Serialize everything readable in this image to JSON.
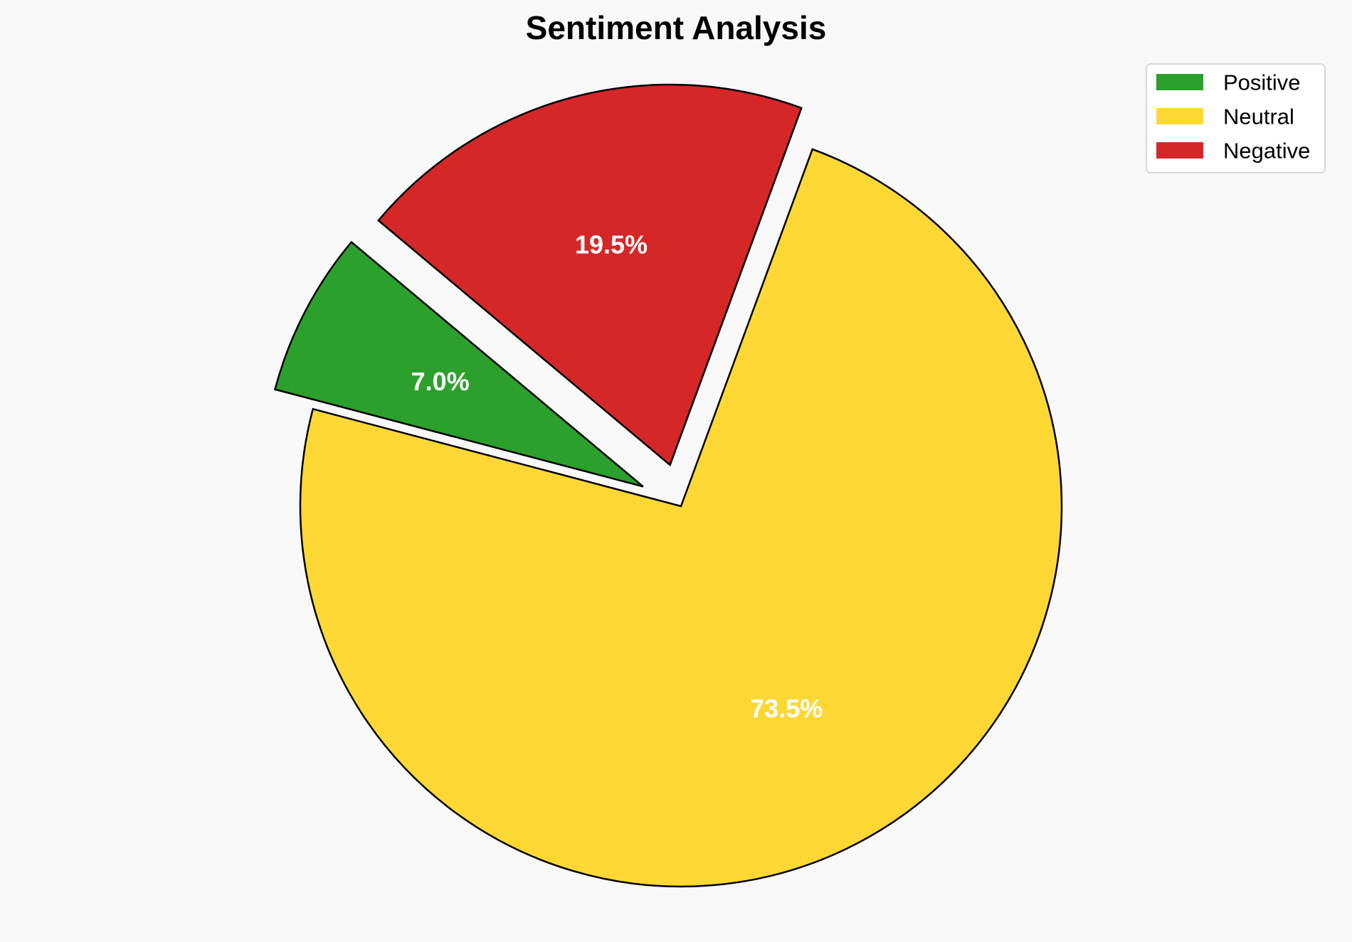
{
  "chart_data": {
    "type": "pie",
    "title": "Sentiment Analysis",
    "categories": [
      "Positive",
      "Neutral",
      "Negative"
    ],
    "values": [
      7.0,
      73.5,
      19.5
    ],
    "labels": [
      "7.0%",
      "73.5%",
      "19.5%"
    ],
    "colors": [
      "#2ca02c",
      "#fdd835",
      "#d62728"
    ],
    "exploded": [
      true,
      false,
      true
    ],
    "legend": {
      "placement": "top-right",
      "entries": [
        "Positive",
        "Neutral",
        "Negative"
      ]
    }
  }
}
